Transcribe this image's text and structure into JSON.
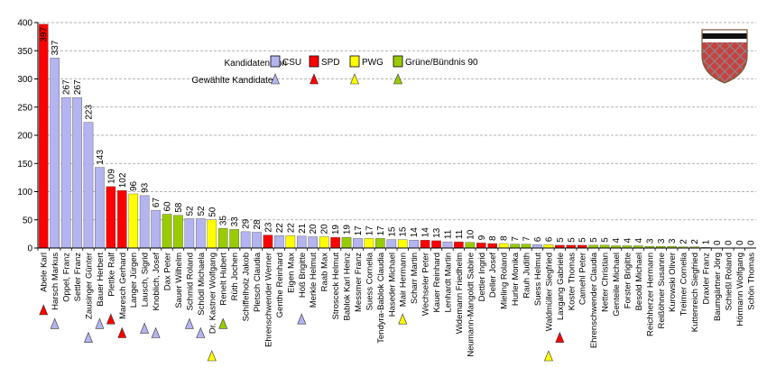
{
  "chart_data": {
    "type": "bar",
    "ylim": [
      0,
      400
    ],
    "yticks": [
      0,
      50,
      100,
      150,
      200,
      250,
      300,
      350,
      400
    ],
    "grid": true,
    "legend": {
      "placement": "top-center",
      "title": "Kandidaten von",
      "elected_label": "Gewählte Kandidaten",
      "parties": [
        {
          "key": "CSU",
          "label": "CSU",
          "color": "#b4b4f0"
        },
        {
          "key": "SPD",
          "label": "SPD",
          "color": "#ff0000"
        },
        {
          "key": "PWG",
          "label": "PWG",
          "color": "#ffff00"
        },
        {
          "key": "GRUENE",
          "label": "Grüne/Bündnis 90",
          "color": "#99cc00"
        }
      ]
    },
    "candidates": [
      {
        "name": "Abele Karl",
        "value": 397,
        "party": "SPD",
        "elected": true
      },
      {
        "name": "Harsch Markus",
        "value": 337,
        "party": "CSU",
        "elected": true
      },
      {
        "name": "Oppel, Franz",
        "value": 267,
        "party": "CSU",
        "elected": false
      },
      {
        "name": "Settler Franz",
        "value": 267,
        "party": "CSU",
        "elected": false
      },
      {
        "name": "Zausinger Günter",
        "value": 223,
        "party": "CSU",
        "elected": true
      },
      {
        "name": "Bauer Herbert",
        "value": 143,
        "party": "CSU",
        "elected": true
      },
      {
        "name": "Plettke Ralf",
        "value": 109,
        "party": "SPD",
        "elected": true
      },
      {
        "name": "Maresch Gerhard",
        "value": 102,
        "party": "SPD",
        "elected": true
      },
      {
        "name": "Langer Jürgen",
        "value": 96,
        "party": "PWG",
        "elected": false
      },
      {
        "name": "Lausch, Sigrid",
        "value": 93,
        "party": "CSU",
        "elected": true
      },
      {
        "name": "Knoblich, Josef",
        "value": 67,
        "party": "CSU",
        "elected": true
      },
      {
        "name": "Dax Peter",
        "value": 60,
        "party": "GRUENE",
        "elected": false
      },
      {
        "name": "Sauer Wilhelm",
        "value": 58,
        "party": "GRUENE",
        "elected": false
      },
      {
        "name": "Schmid Roland",
        "value": 52,
        "party": "CSU",
        "elected": true
      },
      {
        "name": "Schödl Michaela",
        "value": 52,
        "party": "CSU",
        "elected": true
      },
      {
        "name": "Dr. Kastner Wolfgang",
        "value": 50,
        "party": "PWG",
        "elected": true
      },
      {
        "name": "Renelt Hubert",
        "value": 35,
        "party": "GRUENE",
        "elected": true
      },
      {
        "name": "Rüth Jochen",
        "value": 33,
        "party": "GRUENE",
        "elected": false
      },
      {
        "name": "Schiffelholz Jakob",
        "value": 29,
        "party": "CSU",
        "elected": false
      },
      {
        "name": "Pletsch Claudia",
        "value": 28,
        "party": "CSU",
        "elected": false
      },
      {
        "name": "Ehrenschwender Werner",
        "value": 23,
        "party": "SPD",
        "elected": false
      },
      {
        "name": "Genthe Reinhard",
        "value": 22,
        "party": "CSU",
        "elected": false
      },
      {
        "name": "Eigen Max",
        "value": 22,
        "party": "PWG",
        "elected": false
      },
      {
        "name": "Höß Brigitte",
        "value": 21,
        "party": "CSU",
        "elected": true
      },
      {
        "name": "Merkle Helmut",
        "value": 20,
        "party": "CSU",
        "elected": false
      },
      {
        "name": "Raab Max",
        "value": 20,
        "party": "PWG",
        "elected": false
      },
      {
        "name": "Strosceck Helmut",
        "value": 19,
        "party": "SPD",
        "elected": false
      },
      {
        "name": "Bablok Karl Heinz",
        "value": 19,
        "party": "GRUENE",
        "elected": false
      },
      {
        "name": "Messmer Franz",
        "value": 17,
        "party": "CSU",
        "elected": false
      },
      {
        "name": "Suess Cornelia",
        "value": 17,
        "party": "PWG",
        "elected": false
      },
      {
        "name": "Tendyra-Bablok Claudia",
        "value": 17,
        "party": "GRUENE",
        "elected": false
      },
      {
        "name": "Haseder Michael",
        "value": 15,
        "party": "CSU",
        "elected": false
      },
      {
        "name": "Mair Hermann",
        "value": 15,
        "party": "PWG",
        "elected": true
      },
      {
        "name": "Scharr Martin",
        "value": 14,
        "party": "CSU",
        "elected": false
      },
      {
        "name": "Wechseler Peter",
        "value": 14,
        "party": "SPD",
        "elected": false
      },
      {
        "name": "Kauer Reinhard",
        "value": 13,
        "party": "SPD",
        "elected": false
      },
      {
        "name": "Lenhardt Martin",
        "value": 11,
        "party": "CSU",
        "elected": false
      },
      {
        "name": "Widemann Friedhelm",
        "value": 11,
        "party": "SPD",
        "elected": false
      },
      {
        "name": "Neumann-Mangoldt Sabine",
        "value": 10,
        "party": "GRUENE",
        "elected": false
      },
      {
        "name": "Dettler Ingrid",
        "value": 9,
        "party": "SPD",
        "elected": false
      },
      {
        "name": "Deller Josef",
        "value": 8,
        "party": "SPD",
        "elected": false
      },
      {
        "name": "Mieling Roland",
        "value": 8,
        "party": "PWG",
        "elected": false
      },
      {
        "name": "Hurler Monika",
        "value": 7,
        "party": "GRUENE",
        "elected": false
      },
      {
        "name": "Rauh Judith",
        "value": 7,
        "party": "GRUENE",
        "elected": false
      },
      {
        "name": "Suess Helmut",
        "value": 6,
        "party": "CSU",
        "elected": false
      },
      {
        "name": "Waldmüller Siegfried",
        "value": 6,
        "party": "PWG",
        "elected": true
      },
      {
        "name": "Laxgang Gabriele",
        "value": 5,
        "party": "SPD",
        "elected": true
      },
      {
        "name": "Koster Thomas",
        "value": 5,
        "party": "SPD",
        "elected": false
      },
      {
        "name": "Camehl Peter",
        "value": 5,
        "party": "SPD",
        "elected": false
      },
      {
        "name": "Ehrenschwender Claudia",
        "value": 5,
        "party": "GRUENE",
        "elected": false
      },
      {
        "name": "Netter Christian",
        "value": 5,
        "party": "GRUENE",
        "elected": false
      },
      {
        "name": "Genteile Michael",
        "value": 4,
        "party": "GRUENE",
        "elected": false
      },
      {
        "name": "Forster Brigitte",
        "value": 4,
        "party": "GRUENE",
        "elected": false
      },
      {
        "name": "Besold Michael",
        "value": 4,
        "party": "GRUENE",
        "elected": false
      },
      {
        "name": "Reichherzer Hermann",
        "value": 3,
        "party": "GRUENE",
        "elected": false
      },
      {
        "name": "Reißöhner Susanne",
        "value": 3,
        "party": "GRUENE",
        "elected": false
      },
      {
        "name": "Kurowski Oliver",
        "value": 3,
        "party": "GRUENE",
        "elected": false
      },
      {
        "name": "Treimer Cornelia",
        "value": 2,
        "party": "GRUENE",
        "elected": false
      },
      {
        "name": "Kuttenreich Siegfried",
        "value": 2,
        "party": "GRUENE",
        "elected": false
      },
      {
        "name": "Draxler Franz",
        "value": 1,
        "party": "GRUENE",
        "elected": false
      },
      {
        "name": "Baumgärtner Jörg",
        "value": 0,
        "party": "GRUENE",
        "elected": false
      },
      {
        "name": "Schießl Roland",
        "value": 0,
        "party": "GRUENE",
        "elected": false
      },
      {
        "name": "Hörmann Wolfgang",
        "value": 0,
        "party": "GRUENE",
        "elected": false
      },
      {
        "name": "Schön Thomas",
        "value": 0,
        "party": "GRUENE",
        "elected": false
      }
    ]
  },
  "emblem": {
    "name": "coat-of-arms"
  }
}
